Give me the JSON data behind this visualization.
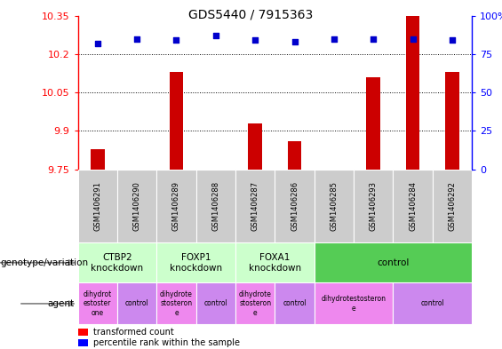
{
  "title": "GDS5440 / 7915363",
  "samples": [
    "GSM1406291",
    "GSM1406290",
    "GSM1406289",
    "GSM1406288",
    "GSM1406287",
    "GSM1406286",
    "GSM1406285",
    "GSM1406293",
    "GSM1406284",
    "GSM1406292"
  ],
  "transformed_count": [
    9.83,
    9.75,
    10.13,
    9.75,
    9.93,
    9.86,
    9.75,
    10.11,
    10.35,
    10.13
  ],
  "percentile_rank": [
    82,
    85,
    84,
    87,
    84,
    83,
    85,
    85,
    85,
    84
  ],
  "ylim_left": [
    9.75,
    10.35
  ],
  "ylim_right": [
    0,
    100
  ],
  "yticks_left": [
    9.75,
    9.9,
    10.05,
    10.2,
    10.35
  ],
  "yticks_right": [
    0,
    25,
    50,
    75,
    100
  ],
  "bar_color": "#cc0000",
  "dot_color": "#0000cc",
  "genotype_groups": [
    {
      "label": "CTBP2\nknockdown",
      "start": 0,
      "end": 2,
      "color": "#ccffcc"
    },
    {
      "label": "FOXP1\nknockdown",
      "start": 2,
      "end": 4,
      "color": "#ccffcc"
    },
    {
      "label": "FOXA1\nknockdown",
      "start": 4,
      "end": 6,
      "color": "#ccffcc"
    },
    {
      "label": "control",
      "start": 6,
      "end": 10,
      "color": "#55cc55"
    }
  ],
  "agent_groups": [
    {
      "label": "dihydrot\nestoster\none",
      "start": 0,
      "end": 1,
      "color": "#ee88ee"
    },
    {
      "label": "control",
      "start": 1,
      "end": 2,
      "color": "#cc88ee"
    },
    {
      "label": "dihydrote\nstosteron\ne",
      "start": 2,
      "end": 3,
      "color": "#ee88ee"
    },
    {
      "label": "control",
      "start": 3,
      "end": 4,
      "color": "#cc88ee"
    },
    {
      "label": "dihydrote\nstosteron\ne",
      "start": 4,
      "end": 5,
      "color": "#ee88ee"
    },
    {
      "label": "control",
      "start": 5,
      "end": 6,
      "color": "#cc88ee"
    },
    {
      "label": "dihydrotestosteron\ne",
      "start": 6,
      "end": 8,
      "color": "#ee88ee"
    },
    {
      "label": "control",
      "start": 8,
      "end": 10,
      "color": "#cc88ee"
    }
  ],
  "sample_bg_color": "#cccccc",
  "background_color": "white",
  "tick_fontsize": 8,
  "bar_width": 0.35
}
